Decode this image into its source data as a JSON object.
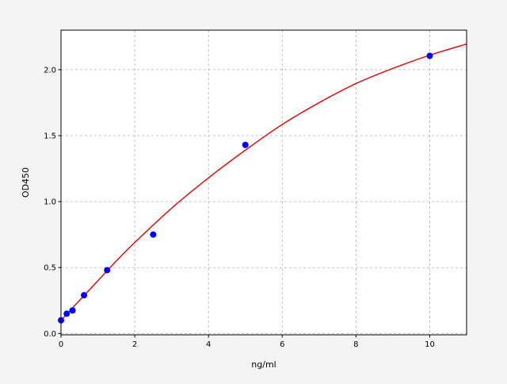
{
  "chart_data": {
    "type": "scatter",
    "title": "",
    "xlabel": "ng/ml",
    "ylabel": "OD450",
    "xlim": [
      0,
      11
    ],
    "ylim": [
      -0.01,
      2.3
    ],
    "xticks": [
      0,
      2,
      4,
      6,
      8,
      10
    ],
    "xtick_labels": [
      "0",
      "2",
      "4",
      "6",
      "8",
      "10"
    ],
    "yticks": [
      0.0,
      0.5,
      1.0,
      1.5,
      2.0
    ],
    "ytick_labels": [
      "0.0",
      "0.5",
      "1.0",
      "1.5",
      "2.0"
    ],
    "grid": true,
    "points": {
      "color": "#0000ff",
      "x": [
        0,
        0.156,
        0.312,
        0.625,
        1.25,
        2.5,
        5,
        10
      ],
      "y": [
        0.1,
        0.15,
        0.175,
        0.29,
        0.48,
        0.75,
        1.43,
        2.105
      ]
    },
    "fit_curve": {
      "color": "#dd1111",
      "x": [
        0,
        0.5,
        1,
        1.5,
        2,
        3,
        4,
        5,
        6,
        7,
        8,
        9,
        10,
        11
      ],
      "y": [
        0.1,
        0.25,
        0.4,
        0.55,
        0.69,
        0.95,
        1.18,
        1.39,
        1.585,
        1.75,
        1.895,
        2.01,
        2.11,
        2.195
      ]
    }
  }
}
